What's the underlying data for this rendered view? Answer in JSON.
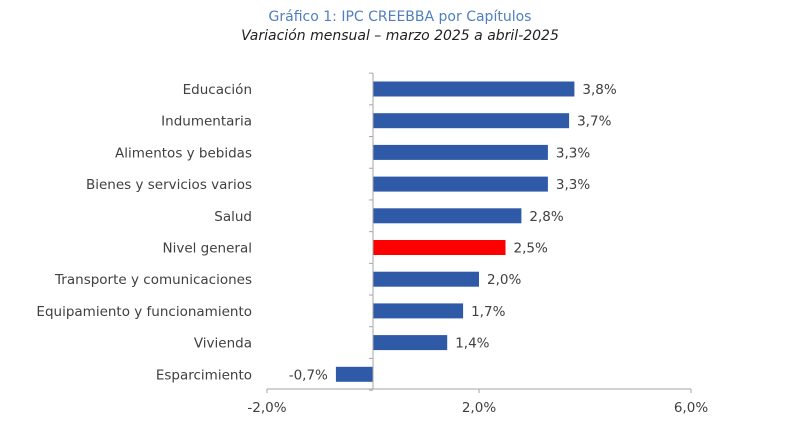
{
  "chart_data": {
    "type": "bar",
    "orientation": "horizontal",
    "title": "Gráfico 1: IPC CREEBBA por Capítulos",
    "subtitle": "Variación mensual –  marzo 2025 a abril-2025",
    "xlabel": "",
    "ylabel": "",
    "categories": [
      "Educación",
      "Indumentaria",
      "Alimentos y bebidas",
      "Bienes y servicios varios",
      "Salud",
      "Nivel general",
      "Transporte y comunicaciones",
      "Equipamiento y funcionamiento",
      "Vivienda",
      "Esparcimiento"
    ],
    "values": [
      3.8,
      3.7,
      3.3,
      3.3,
      2.8,
      2.5,
      2.0,
      1.7,
      1.4,
      -0.7
    ],
    "value_labels": [
      "3,8%",
      "3,7%",
      "3,3%",
      "3,3%",
      "2,8%",
      "2,5%",
      "2,0%",
      "1,7%",
      "1,4%",
      "-0,7%"
    ],
    "highlight_category": "Nivel general",
    "xlim": [
      -2.0,
      6.0
    ],
    "xticks": [
      -2.0,
      2.0,
      6.0
    ],
    "xtick_labels": [
      "-2,0%",
      "2,0%",
      "6,0%"
    ],
    "grid": false,
    "legend": "none",
    "colors": {
      "bar": "#2e5aa8",
      "highlight": "#ff0000",
      "axis": "#a6a6a6",
      "text": "#404040",
      "title": "#4f7fc0"
    }
  }
}
